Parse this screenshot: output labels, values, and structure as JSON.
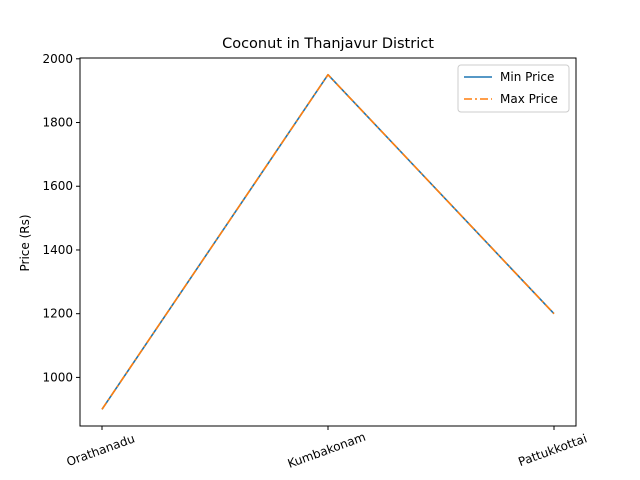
{
  "chart_data": {
    "type": "line",
    "title": "Coconut in Thanjavur District",
    "xlabel": "",
    "ylabel": "Price (Rs)",
    "categories": [
      "Orathanadu",
      "Kumbakonam",
      "Pattukkottai"
    ],
    "series": [
      {
        "name": "Min Price",
        "values": [
          900,
          1950,
          1200
        ],
        "color": "#1f77b4",
        "style": "solid"
      },
      {
        "name": "Max Price",
        "values": [
          900,
          1950,
          1200
        ],
        "color": "#ff7f0e",
        "style": "dashdot"
      }
    ],
    "ylim": [
      847.5,
      2002.5
    ],
    "yticks": [
      1000,
      1200,
      1400,
      1600,
      1800,
      2000
    ],
    "grid": false,
    "legend": "top-right"
  }
}
